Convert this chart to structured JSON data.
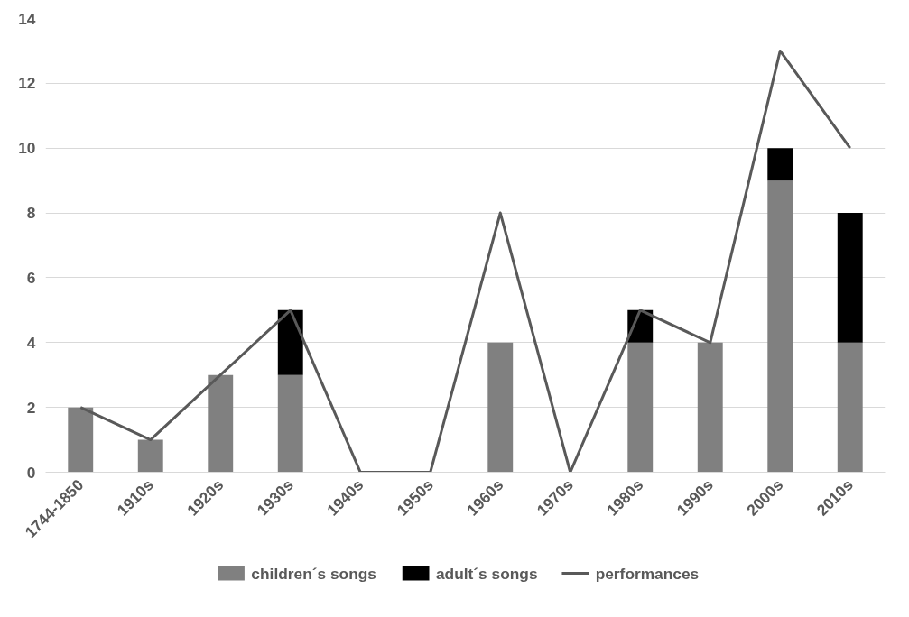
{
  "chart_data": {
    "type": "bar",
    "stacked": true,
    "categories": [
      "1744-1850",
      "1910s",
      "1920s",
      "1930s",
      "1940s",
      "1950s",
      "1960s",
      "1970s",
      "1980s",
      "1990s",
      "2000s",
      "2010s"
    ],
    "series": [
      {
        "name": "children´s songs",
        "color": "#808080",
        "values": [
          2,
          1,
          3,
          3,
          0,
          0,
          4,
          0,
          4,
          4,
          9,
          4
        ]
      },
      {
        "name": "adult´s songs",
        "color": "#000000",
        "values": [
          0,
          0,
          0,
          2,
          0,
          0,
          0,
          0,
          1,
          0,
          1,
          4
        ]
      },
      {
        "name": "performances",
        "type": "line",
        "color": "#595959",
        "values": [
          2,
          1,
          3,
          5,
          0,
          0,
          8,
          0,
          5,
          4,
          13,
          10
        ]
      }
    ],
    "ylim": [
      0,
      14
    ],
    "yticks": [
      0,
      2,
      4,
      6,
      8,
      10,
      12,
      14
    ],
    "grid": "y",
    "legend": "bottom"
  }
}
